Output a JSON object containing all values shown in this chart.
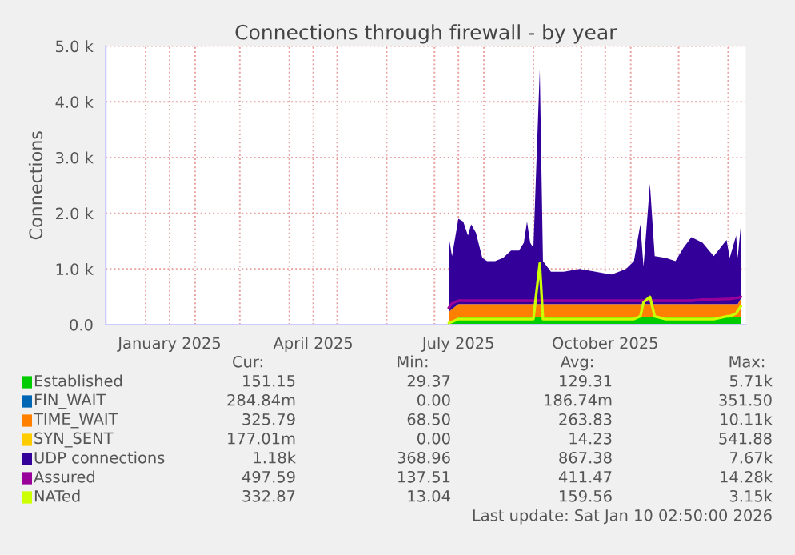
{
  "chart_data": {
    "type": "area",
    "stacked": true,
    "title": "Connections through firewall - by year",
    "ylabel": "Connections",
    "x": [
      "2025-07-10",
      "2025-07-12",
      "2025-07-16",
      "2025-07-19",
      "2025-07-22",
      "2025-07-24",
      "2025-07-27",
      "2025-07-31",
      "2025-08-03",
      "2025-08-08",
      "2025-08-13",
      "2025-08-18",
      "2025-08-23",
      "2025-08-26",
      "2025-08-28",
      "2025-08-30",
      "2025-09-01",
      "2025-09-05",
      "2025-09-07",
      "2025-09-12",
      "2025-09-20",
      "2025-09-30",
      "2025-10-10",
      "2025-10-20",
      "2025-10-29",
      "2025-11-03",
      "2025-11-07",
      "2025-11-09",
      "2025-11-13",
      "2025-11-16",
      "2025-11-23",
      "2025-11-29",
      "2025-12-04",
      "2025-12-09",
      "2025-12-16",
      "2025-12-23",
      "2025-12-31",
      "2026-01-02",
      "2026-01-06",
      "2026-01-07",
      "2026-01-09"
    ],
    "series": [
      {
        "name": "Established",
        "color": "#00cc00",
        "values": [
          30,
          60,
          130,
          130,
          130,
          130,
          130,
          130,
          130,
          130,
          130,
          130,
          130,
          130,
          130,
          130,
          130,
          130,
          130,
          130,
          130,
          130,
          130,
          130,
          130,
          130,
          130,
          130,
          130,
          130,
          130,
          130,
          130,
          130,
          130,
          130,
          130,
          130,
          130,
          130,
          150
        ]
      },
      {
        "name": "FIN_WAIT",
        "color": "#0066b3",
        "values": [
          null,
          null,
          null,
          null,
          null,
          null,
          null,
          null,
          null,
          null,
          null,
          null,
          null,
          null,
          null,
          null,
          null,
          null,
          null,
          null,
          null,
          null,
          null,
          null,
          null,
          null,
          null,
          null,
          null,
          null,
          null,
          null,
          null,
          null,
          null,
          null,
          null,
          null,
          null,
          null,
          null
        ]
      },
      {
        "name": "TIME_WAIT",
        "color": "#ff8000",
        "values": [
          200,
          220,
          240,
          240,
          240,
          240,
          240,
          240,
          240,
          240,
          240,
          240,
          240,
          240,
          240,
          240,
          240,
          240,
          240,
          240,
          240,
          240,
          240,
          240,
          240,
          240,
          240,
          240,
          240,
          240,
          240,
          240,
          240,
          240,
          240,
          240,
          240,
          240,
          240,
          240,
          320
        ]
      },
      {
        "name": "SYN_SENT",
        "color": "#ffcc00",
        "values": [
          null,
          null,
          null,
          null,
          null,
          null,
          null,
          null,
          null,
          null,
          null,
          null,
          null,
          null,
          null,
          null,
          null,
          null,
          null,
          null,
          null,
          null,
          null,
          null,
          null,
          null,
          null,
          null,
          null,
          null,
          null,
          null,
          null,
          null,
          null,
          null,
          null,
          null,
          null,
          null,
          null
        ]
      },
      {
        "name": "UDP connections",
        "color": "#330099",
        "values": [
          1340,
          950,
          1530,
          1480,
          1230,
          1430,
          1280,
          830,
          770,
          770,
          830,
          960,
          960,
          1100,
          1480,
          1100,
          1010,
          4210,
          770,
          580,
          580,
          630,
          580,
          530,
          630,
          770,
          1430,
          670,
          2160,
          860,
          830,
          770,
          1010,
          1200,
          1100,
          860,
          1150,
          830,
          1230,
          830,
          1330
        ]
      },
      {
        "name": "Assured",
        "color": "#990099",
        "type": "line",
        "values": [
          300,
          380,
          430,
          430,
          430,
          430,
          430,
          430,
          430,
          430,
          430,
          430,
          430,
          430,
          430,
          430,
          430,
          430,
          430,
          430,
          430,
          430,
          430,
          430,
          430,
          430,
          430,
          430,
          430,
          430,
          430,
          430,
          430,
          430,
          450,
          450,
          460,
          460,
          480,
          480,
          500
        ]
      },
      {
        "name": "NATed",
        "color": "#ccff00",
        "type": "line",
        "values": [
          30,
          50,
          100,
          100,
          100,
          100,
          100,
          100,
          100,
          100,
          100,
          100,
          100,
          100,
          100,
          100,
          100,
          1100,
          100,
          100,
          100,
          100,
          100,
          100,
          100,
          100,
          150,
          400,
          500,
          150,
          100,
          100,
          100,
          100,
          100,
          100,
          150,
          150,
          200,
          250,
          330
        ]
      }
    ],
    "xlim": [
      "2024-12-07",
      "2026-01-12"
    ],
    "xticks": [
      {
        "value": "2025-01-01",
        "label": null
      },
      {
        "value": "2025-01-16",
        "label": "January 2025"
      },
      {
        "value": "2025-02-01",
        "label": null
      },
      {
        "value": "2025-03-01",
        "label": null
      },
      {
        "value": "2025-04-01",
        "label": null
      },
      {
        "value": "2025-04-16",
        "label": "April 2025"
      },
      {
        "value": "2025-05-01",
        "label": null
      },
      {
        "value": "2025-06-01",
        "label": null
      },
      {
        "value": "2025-07-01",
        "label": null
      },
      {
        "value": "2025-07-16",
        "label": "July 2025"
      },
      {
        "value": "2025-08-01",
        "label": null
      },
      {
        "value": "2025-09-01",
        "label": null
      },
      {
        "value": "2025-10-01",
        "label": null
      },
      {
        "value": "2025-10-16",
        "label": "October 2025"
      },
      {
        "value": "2025-11-01",
        "label": null
      },
      {
        "value": "2025-12-01",
        "label": null
      },
      {
        "value": "2026-01-01",
        "label": null
      }
    ],
    "ylim": [
      0,
      5000
    ],
    "yticks": [
      {
        "value": 0,
        "label": "0.0"
      },
      {
        "value": 1000,
        "label": "1.0 k"
      },
      {
        "value": 2000,
        "label": "2.0 k"
      },
      {
        "value": 3000,
        "label": "3.0 k"
      },
      {
        "value": 4000,
        "label": "4.0 k"
      },
      {
        "value": 5000,
        "label": "5.0 k"
      }
    ],
    "grid": true,
    "legend": "bottom",
    "annotations": [
      "Cur:",
      "Min:",
      "Avg:",
      "Max:",
      "151.15",
      "29.37",
      "129.31",
      "5.71k",
      "284.84m",
      "0.00",
      "186.74m",
      "351.50",
      "325.79",
      "68.50",
      "263.83",
      "10.11k",
      "177.01m",
      "0.00",
      "14.23",
      "541.88",
      "1.18k",
      "368.96",
      "867.38",
      "7.67k",
      "497.59",
      "137.51",
      "411.47",
      "14.28k",
      "332.87",
      "13.04",
      "159.56",
      "3.15k",
      "Last update: Sat Jan 10 02:50:00 2026"
    ]
  }
}
